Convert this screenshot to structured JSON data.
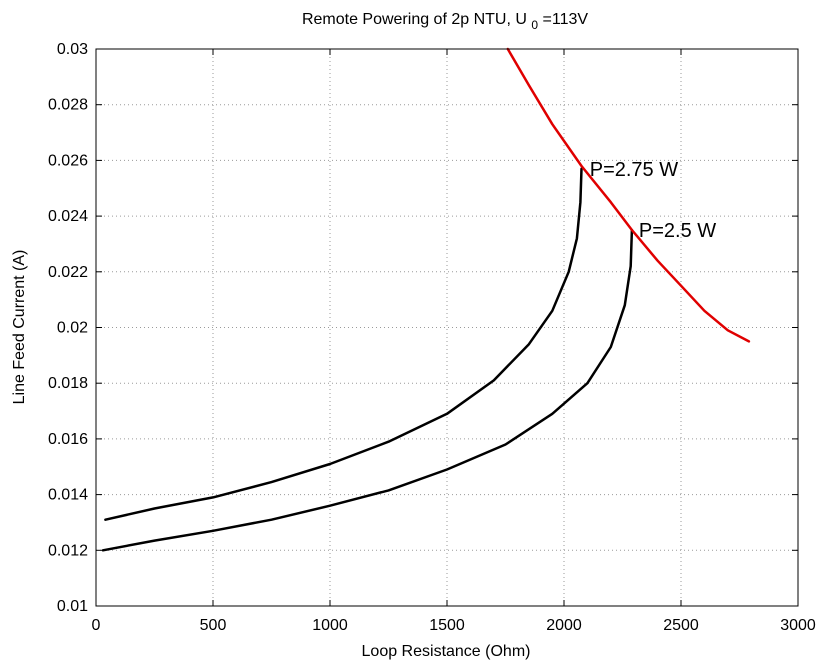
{
  "chart_data": {
    "type": "line",
    "title": {
      "main": "Remote Powering of 2p NTU, U",
      "subscript": "0",
      "suffix": "=113V"
    },
    "xlabel": "Loop Resistance (Ohm)",
    "ylabel": "Line Feed Current (A)",
    "xlim": [
      0,
      3000
    ],
    "ylim": [
      0.01,
      0.03
    ],
    "xticks": [
      0,
      500,
      1000,
      1500,
      2000,
      2500,
      3000
    ],
    "yticks": [
      0.01,
      0.012,
      0.014,
      0.016,
      0.018,
      0.02,
      0.022,
      0.024,
      0.026,
      0.028,
      0.03
    ],
    "xtick_labels": [
      "0",
      "500",
      "1000",
      "1500",
      "2000",
      "2500",
      "3000"
    ],
    "ytick_labels": [
      "0.01",
      "0.012",
      "0.014",
      "0.016",
      "0.018",
      "0.02",
      "0.022",
      "0.024",
      "0.026",
      "0.028",
      "0.03"
    ],
    "grid": true,
    "colors": {
      "curves": "#000000",
      "boundary": "#e00000"
    },
    "series": [
      {
        "id": "p275",
        "color": "#000000",
        "x": [
          40,
          250,
          500,
          750,
          1000,
          1250,
          1500,
          1700,
          1850,
          1950,
          2020,
          2055,
          2070,
          2075
        ],
        "y": [
          0.0131,
          0.0135,
          0.0139,
          0.01445,
          0.0151,
          0.0159,
          0.0169,
          0.0181,
          0.0194,
          0.0206,
          0.022,
          0.0232,
          0.0245,
          0.0257
        ]
      },
      {
        "id": "p25",
        "color": "#000000",
        "x": [
          30,
          250,
          500,
          750,
          1000,
          1250,
          1500,
          1750,
          1950,
          2100,
          2200,
          2260,
          2285,
          2290
        ],
        "y": [
          0.012,
          0.01235,
          0.0127,
          0.0131,
          0.0136,
          0.01415,
          0.0149,
          0.0158,
          0.0169,
          0.018,
          0.0193,
          0.0208,
          0.0222,
          0.0235
        ]
      },
      {
        "id": "boundary",
        "color": "#e00000",
        "x": [
          1760,
          1850,
          1950,
          2075,
          2200,
          2290,
          2400,
          2500,
          2600,
          2700,
          2790
        ],
        "y": [
          0.03,
          0.0287,
          0.0273,
          0.0258,
          0.0245,
          0.0235,
          0.0224,
          0.0215,
          0.0206,
          0.0199,
          0.0195
        ]
      }
    ],
    "annotations": [
      {
        "text": "P=2.75 W",
        "x": 2110,
        "y": 0.0257
      },
      {
        "text": "P=2.5 W",
        "x": 2320,
        "y": 0.0235
      }
    ]
  }
}
